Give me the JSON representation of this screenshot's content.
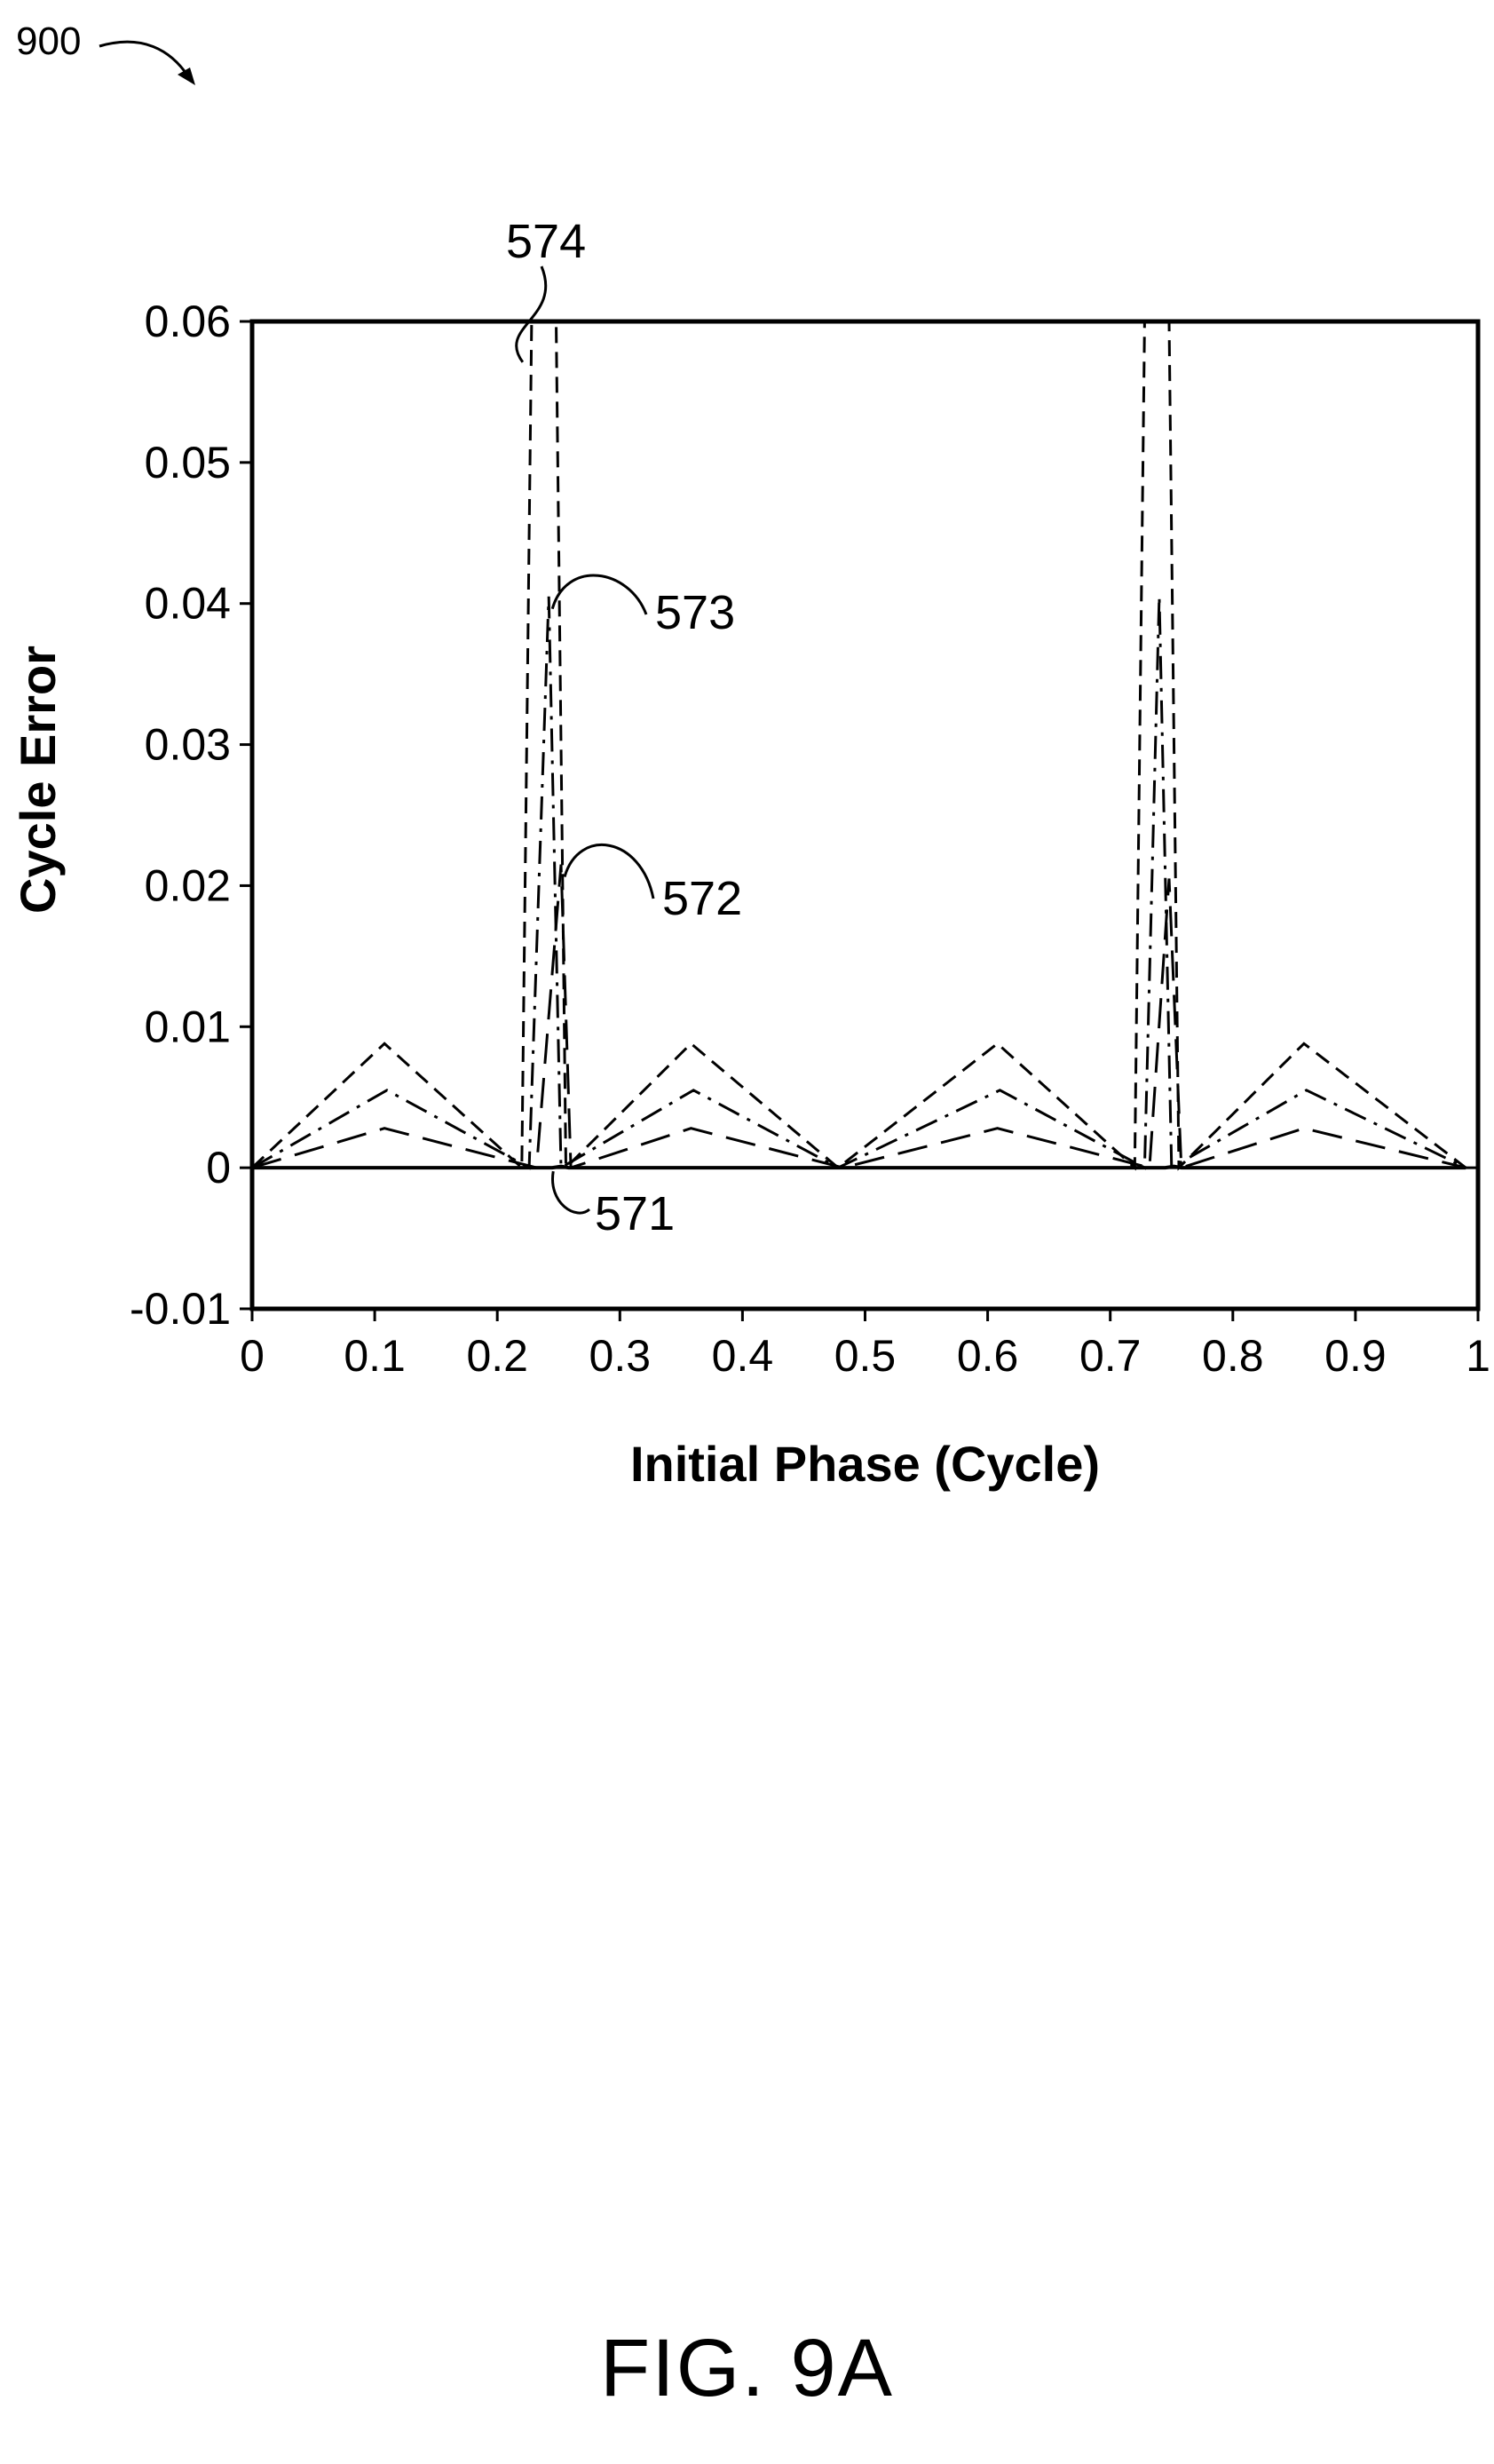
{
  "figure": {
    "reference_numeral": "900",
    "caption": "FIG. 9A"
  },
  "chart_data": {
    "type": "line",
    "title": "",
    "xlabel": "Initial Phase (Cycle)",
    "ylabel": "Cycle Error",
    "xlim": [
      0,
      1
    ],
    "ylim": [
      -0.01,
      0.06
    ],
    "x_ticks": [
      "0",
      "0.1",
      "0.2",
      "0.3",
      "0.4",
      "0.5",
      "0.6",
      "0.7",
      "0.8",
      "0.9",
      "1"
    ],
    "y_ticks": [
      "0.06",
      "0.05",
      "0.04",
      "0.03",
      "0.02",
      "0.01",
      "0",
      "-0.01"
    ],
    "grid": false,
    "legend": "none",
    "series": [
      {
        "label": "571",
        "line_style": "solid",
        "points": [
          [
            0,
            0
          ],
          [
            0.245,
            0
          ],
          [
            0.252,
            0.0001
          ],
          [
            0.258,
            0
          ],
          [
            0.745,
            0
          ],
          [
            0.752,
            0.0001
          ],
          [
            0.758,
            0
          ],
          [
            0.99,
            0
          ]
        ]
      },
      {
        "label": "572",
        "line_style": "long-dash",
        "points": [
          [
            0,
            0
          ],
          [
            0.108,
            0.0028
          ],
          [
            0.232,
            0
          ],
          [
            0.252,
            0.0215
          ],
          [
            0.26,
            0
          ],
          [
            0.358,
            0.0028
          ],
          [
            0.482,
            0
          ],
          [
            0.608,
            0.0028
          ],
          [
            0.732,
            0
          ],
          [
            0.748,
            0.0205
          ],
          [
            0.758,
            0
          ],
          [
            0.858,
            0.0028
          ],
          [
            0.99,
            0
          ]
        ]
      },
      {
        "label": "573",
        "line_style": "dash-dot",
        "points": [
          [
            0,
            0
          ],
          [
            0.11,
            0.0055
          ],
          [
            0.226,
            0
          ],
          [
            0.242,
            0.0405
          ],
          [
            0.252,
            0
          ],
          [
            0.36,
            0.0055
          ],
          [
            0.478,
            0
          ],
          [
            0.61,
            0.0055
          ],
          [
            0.728,
            0
          ],
          [
            0.74,
            0.0405
          ],
          [
            0.75,
            0
          ],
          [
            0.86,
            0.0055
          ],
          [
            0.99,
            0
          ]
        ]
      },
      {
        "label": "574",
        "line_style": "short-dash",
        "points": [
          [
            0,
            0
          ],
          [
            0.108,
            0.0088
          ],
          [
            0.22,
            0
          ],
          [
            0.228,
            0.06
          ],
          [
            0.248,
            0.06
          ],
          [
            0.256,
            0
          ],
          [
            0.358,
            0.0088
          ],
          [
            0.478,
            0
          ],
          [
            0.608,
            0.0088
          ],
          [
            0.72,
            0
          ],
          [
            0.728,
            0.06
          ],
          [
            0.748,
            0.06
          ],
          [
            0.756,
            0
          ],
          [
            0.858,
            0.0088
          ],
          [
            0.99,
            0
          ]
        ]
      }
    ],
    "annotations": [
      {
        "text": "574",
        "series": "574",
        "at": [
          0.228,
          0.059
        ]
      },
      {
        "text": "573",
        "series": "573",
        "at": [
          0.242,
          0.04
        ]
      },
      {
        "text": "572",
        "series": "572",
        "at": [
          0.252,
          0.021
        ]
      },
      {
        "text": "571",
        "series": "571",
        "at": [
          0.25,
          0
        ]
      }
    ]
  }
}
